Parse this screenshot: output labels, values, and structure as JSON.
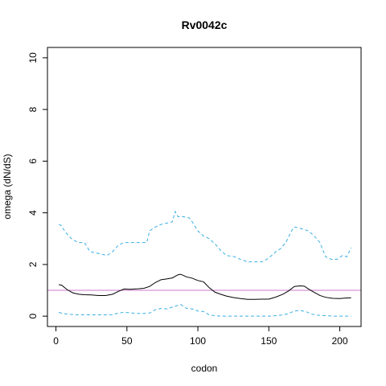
{
  "chart_data": {
    "type": "line",
    "title": "Rv0042c",
    "xlabel": "codon",
    "ylabel": "omega (dN/dS)",
    "xlim": [
      -6,
      215
    ],
    "ylim": [
      -0.4,
      10.4
    ],
    "x_ticks": [
      0,
      50,
      100,
      150,
      200
    ],
    "y_ticks": [
      0,
      2,
      4,
      6,
      8,
      10
    ],
    "reference_line": {
      "y": 1,
      "color": "#c978c9"
    },
    "series": [
      {
        "role": "estimate",
        "color": "#000000",
        "dash": "solid",
        "points": [
          [
            2,
            1.22
          ],
          [
            4,
            1.2
          ],
          [
            8,
            1.02
          ],
          [
            12,
            0.9
          ],
          [
            16,
            0.85
          ],
          [
            20,
            0.83
          ],
          [
            25,
            0.82
          ],
          [
            30,
            0.8
          ],
          [
            35,
            0.8
          ],
          [
            40,
            0.85
          ],
          [
            44,
            0.96
          ],
          [
            48,
            1.05
          ],
          [
            52,
            1.04
          ],
          [
            58,
            1.06
          ],
          [
            62,
            1.08
          ],
          [
            66,
            1.15
          ],
          [
            70,
            1.3
          ],
          [
            74,
            1.41
          ],
          [
            78,
            1.44
          ],
          [
            82,
            1.48
          ],
          [
            86,
            1.6
          ],
          [
            88,
            1.62
          ],
          [
            92,
            1.52
          ],
          [
            96,
            1.47
          ],
          [
            100,
            1.38
          ],
          [
            104,
            1.33
          ],
          [
            108,
            1.1
          ],
          [
            112,
            0.93
          ],
          [
            116,
            0.85
          ],
          [
            120,
            0.78
          ],
          [
            125,
            0.72
          ],
          [
            130,
            0.68
          ],
          [
            135,
            0.65
          ],
          [
            140,
            0.65
          ],
          [
            145,
            0.66
          ],
          [
            150,
            0.66
          ],
          [
            155,
            0.74
          ],
          [
            160,
            0.85
          ],
          [
            164,
            0.98
          ],
          [
            168,
            1.15
          ],
          [
            172,
            1.17
          ],
          [
            175,
            1.16
          ],
          [
            178,
            1.05
          ],
          [
            182,
            0.92
          ],
          [
            186,
            0.8
          ],
          [
            190,
            0.73
          ],
          [
            195,
            0.69
          ],
          [
            200,
            0.68
          ],
          [
            204,
            0.7
          ],
          [
            208,
            0.71
          ]
        ]
      },
      {
        "role": "upper-bound",
        "color": "#3ab0e2",
        "dash": "dashed",
        "points": [
          [
            2,
            3.55
          ],
          [
            4,
            3.5
          ],
          [
            6,
            3.3
          ],
          [
            9,
            3.1
          ],
          [
            12,
            2.95
          ],
          [
            16,
            2.85
          ],
          [
            20,
            2.85
          ],
          [
            24,
            2.5
          ],
          [
            28,
            2.45
          ],
          [
            32,
            2.4
          ],
          [
            36,
            2.35
          ],
          [
            40,
            2.5
          ],
          [
            44,
            2.75
          ],
          [
            48,
            2.85
          ],
          [
            52,
            2.85
          ],
          [
            58,
            2.85
          ],
          [
            64,
            2.85
          ],
          [
            66,
            3.3
          ],
          [
            70,
            3.45
          ],
          [
            74,
            3.55
          ],
          [
            78,
            3.6
          ],
          [
            82,
            3.65
          ],
          [
            84,
            4.05
          ],
          [
            86,
            3.85
          ],
          [
            90,
            3.85
          ],
          [
            94,
            3.8
          ],
          [
            96,
            3.65
          ],
          [
            100,
            3.3
          ],
          [
            104,
            3.1
          ],
          [
            108,
            3.0
          ],
          [
            112,
            2.8
          ],
          [
            116,
            2.55
          ],
          [
            120,
            2.35
          ],
          [
            126,
            2.3
          ],
          [
            130,
            2.2
          ],
          [
            135,
            2.1
          ],
          [
            140,
            2.1
          ],
          [
            145,
            2.1
          ],
          [
            150,
            2.25
          ],
          [
            155,
            2.5
          ],
          [
            158,
            2.6
          ],
          [
            162,
            2.85
          ],
          [
            166,
            3.3
          ],
          [
            168,
            3.45
          ],
          [
            172,
            3.4
          ],
          [
            178,
            3.3
          ],
          [
            182,
            3.1
          ],
          [
            186,
            2.85
          ],
          [
            190,
            2.3
          ],
          [
            194,
            2.2
          ],
          [
            198,
            2.2
          ],
          [
            202,
            2.35
          ],
          [
            205,
            2.3
          ],
          [
            208,
            2.65
          ]
        ]
      },
      {
        "role": "lower-bound",
        "color": "#3ab0e2",
        "dash": "dashed",
        "points": [
          [
            2,
            0.15
          ],
          [
            5,
            0.1
          ],
          [
            10,
            0.07
          ],
          [
            15,
            0.05
          ],
          [
            20,
            0.05
          ],
          [
            25,
            0.05
          ],
          [
            30,
            0.05
          ],
          [
            35,
            0.05
          ],
          [
            40,
            0.06
          ],
          [
            44,
            0.12
          ],
          [
            48,
            0.15
          ],
          [
            54,
            0.12
          ],
          [
            60,
            0.1
          ],
          [
            66,
            0.12
          ],
          [
            70,
            0.25
          ],
          [
            74,
            0.3
          ],
          [
            78,
            0.28
          ],
          [
            82,
            0.35
          ],
          [
            86,
            0.42
          ],
          [
            88,
            0.45
          ],
          [
            92,
            0.3
          ],
          [
            96,
            0.28
          ],
          [
            100,
            0.2
          ],
          [
            104,
            0.18
          ],
          [
            108,
            0.05
          ],
          [
            112,
            0.02
          ],
          [
            116,
            0.0
          ],
          [
            120,
            0.0
          ],
          [
            130,
            0.0
          ],
          [
            140,
            0.0
          ],
          [
            150,
            0.0
          ],
          [
            155,
            0.02
          ],
          [
            160,
            0.05
          ],
          [
            164,
            0.1
          ],
          [
            168,
            0.2
          ],
          [
            172,
            0.22
          ],
          [
            176,
            0.18
          ],
          [
            180,
            0.08
          ],
          [
            184,
            0.04
          ],
          [
            190,
            0.02
          ],
          [
            196,
            0.0
          ],
          [
            202,
            0.0
          ],
          [
            208,
            0.0
          ]
        ]
      }
    ]
  }
}
